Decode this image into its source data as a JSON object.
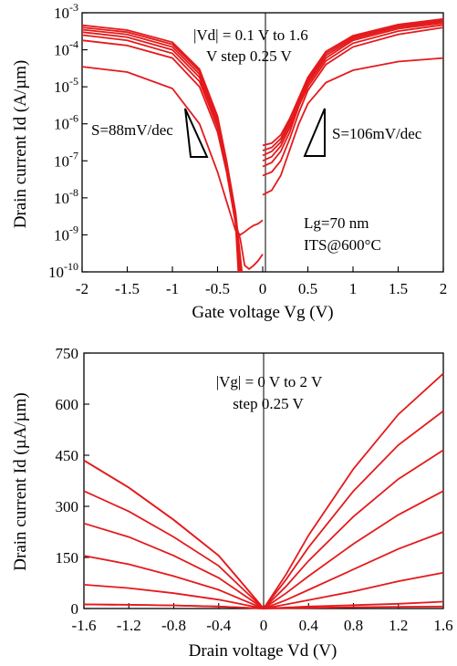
{
  "colors": {
    "curve": "#e41a1c",
    "axis": "#000000"
  },
  "chart_data": [
    {
      "type": "line",
      "xlabel": "Gate voltage Vg (V)",
      "ylabel": "Drain current Id (A/µm)",
      "x_ticks": [
        "-2",
        "-1.5",
        "-1",
        "-0.5",
        "0",
        "0.5",
        "1",
        "1.5",
        "2"
      ],
      "y_ticks": [
        "10-10",
        "10-9",
        "10-8",
        "10-7",
        "10-6",
        "10-5",
        "10-4",
        "10-3"
      ],
      "xlim": [
        -2,
        2
      ],
      "ylim": [
        1e-10,
        0.001
      ],
      "yscale": "log",
      "annotations": {
        "vd_range": "|Vd| = 0.1 V to 1.6",
        "vd_step": "V step 0.25 V",
        "s_left": "S=88mV/dec",
        "s_right": "S=106mV/dec",
        "lg": "Lg=70 nm",
        "its": "ITS@600°C"
      },
      "negative_branch": [
        {
          "x": [
            -2.0,
            -1.5,
            -1.0,
            -0.7,
            -0.5,
            -0.4,
            -0.3,
            -0.25,
            -0.2,
            -0.15,
            -0.1,
            -0.05,
            0.0
          ],
          "y": [
            3.5e-05,
            2.5e-05,
            9e-06,
            1e-06,
            5e-08,
            8e-09,
            1.3e-09,
            1e-09,
            1.2e-09,
            1.5e-09,
            1.8e-09,
            2e-09,
            2.5e-09
          ]
        },
        {
          "x": [
            -2.0,
            -1.5,
            -1.0,
            -0.7,
            -0.5,
            -0.4,
            -0.3,
            -0.25,
            -0.2,
            -0.15,
            -0.1,
            -0.05,
            0.0
          ],
          "y": [
            0.00018,
            0.00013,
            6e-05,
            1e-05,
            6e-07,
            5e-08,
            2e-09,
            8e-10,
            1.5e-10,
            1.2e-10,
            1.5e-10,
            2e-10,
            3e-10
          ]
        },
        {
          "x": [
            -2.0,
            -1.5,
            -1.0,
            -0.7,
            -0.5,
            -0.4,
            -0.3,
            -0.27
          ],
          "y": [
            0.00025,
            0.00018,
            8e-05,
            1.4e-05,
            8e-07,
            6e-08,
            2e-09,
            1e-10
          ]
        },
        {
          "x": [
            -2.0,
            -1.5,
            -1.0,
            -0.7,
            -0.5,
            -0.4,
            -0.3,
            -0.26
          ],
          "y": [
            0.0003,
            0.00022,
            0.0001,
            1.8e-05,
            1e-06,
            7e-08,
            2.5e-09,
            1e-10
          ]
        },
        {
          "x": [
            -2.0,
            -1.5,
            -1.0,
            -0.7,
            -0.5,
            -0.4,
            -0.3,
            -0.25
          ],
          "y": [
            0.00035,
            0.00026,
            0.00012,
            2.2e-05,
            1.2e-06,
            8e-08,
            3e-09,
            1e-10
          ]
        },
        {
          "x": [
            -2.0,
            -1.5,
            -1.0,
            -0.7,
            -0.5,
            -0.4,
            -0.3,
            -0.24
          ],
          "y": [
            0.0004,
            0.0003,
            0.00014,
            2.6e-05,
            1.4e-06,
            9e-08,
            3.5e-09,
            1e-10
          ]
        },
        {
          "x": [
            -2.0,
            -1.5,
            -1.0,
            -0.7,
            -0.5,
            -0.4,
            -0.3,
            -0.23
          ],
          "y": [
            0.00046,
            0.00034,
            0.00016,
            3e-05,
            1.6e-06,
            1e-07,
            4e-09,
            1e-10
          ]
        }
      ],
      "positive_branch": [
        {
          "x": [
            0.0,
            0.1,
            0.2,
            0.3,
            0.4,
            0.5,
            0.7,
            1.0,
            1.5,
            2.0
          ],
          "y": [
            1.2e-08,
            1.6e-08,
            4e-08,
            2e-07,
            1e-06,
            3.5e-06,
            1.3e-05,
            2.8e-05,
            4.8e-05,
            6e-05
          ]
        },
        {
          "x": [
            0.0,
            0.1,
            0.2,
            0.3,
            0.4,
            0.5,
            0.7,
            1.0,
            1.5,
            2.0
          ],
          "y": [
            4e-08,
            5e-08,
            1e-07,
            4e-07,
            2e-06,
            8e-06,
            4e-05,
            0.00012,
            0.00026,
            0.0004
          ]
        },
        {
          "x": [
            0.0,
            0.1,
            0.2,
            0.3,
            0.4,
            0.5,
            0.7,
            1.0,
            1.5,
            2.0
          ],
          "y": [
            7e-08,
            9e-08,
            1.8e-07,
            6e-07,
            3e-06,
            1e-05,
            5e-05,
            0.00015,
            0.00032,
            0.00047
          ]
        },
        {
          "x": [
            0.0,
            0.1,
            0.2,
            0.3,
            0.4,
            0.5,
            0.7,
            1.0,
            1.5,
            2.0
          ],
          "y": [
            1e-07,
            1.3e-07,
            2.5e-07,
            8e-07,
            3.5e-06,
            1.2e-05,
            6e-05,
            0.00018,
            0.00037,
            0.00053
          ]
        },
        {
          "x": [
            0.0,
            0.1,
            0.2,
            0.3,
            0.4,
            0.5,
            0.7,
            1.0,
            1.5,
            2.0
          ],
          "y": [
            1.4e-07,
            1.8e-07,
            3.2e-07,
            1e-06,
            4e-06,
            1.4e-05,
            7e-05,
            0.0002,
            0.00041,
            0.00058
          ]
        },
        {
          "x": [
            0.0,
            0.1,
            0.2,
            0.3,
            0.4,
            0.5,
            0.7,
            1.0,
            1.5,
            2.0
          ],
          "y": [
            1.9e-07,
            2.3e-07,
            4e-07,
            1.2e-06,
            4.5e-06,
            1.6e-05,
            8e-05,
            0.00022,
            0.00044,
            0.00063
          ]
        },
        {
          "x": [
            0.0,
            0.1,
            0.2,
            0.3,
            0.4,
            0.5,
            0.7,
            1.0,
            1.5,
            2.0
          ],
          "y": [
            2.6e-07,
            3e-07,
            5e-07,
            1.4e-06,
            5e-06,
            1.8e-05,
            9e-05,
            0.00024,
            0.00048,
            0.00068
          ]
        }
      ]
    },
    {
      "type": "line",
      "xlabel": "Drain voltage Vd (V)",
      "ylabel": "Drain current Id (µA/µm)",
      "x_ticks": [
        "-1.6",
        "-1.2",
        "-0.8",
        "-0.4",
        "0",
        "0.4",
        "0.8",
        "1.2",
        "1.6"
      ],
      "y_ticks": [
        "0",
        "150",
        "300",
        "450",
        "600",
        "750"
      ],
      "xlim": [
        -1.6,
        1.6
      ],
      "ylim": [
        0,
        750
      ],
      "annotations": {
        "vg_range": "|Vg| = 0 V to 2 V",
        "vg_step": "step  0.25 V"
      },
      "x": [
        -1.6,
        -1.2,
        -0.8,
        -0.4,
        -0.2,
        0,
        0.2,
        0.4,
        0.8,
        1.2,
        1.6
      ],
      "series": [
        {
          "values": [
            12,
            11,
            9,
            6,
            3,
            0,
            1,
            2,
            4,
            5,
            6
          ]
        },
        {
          "values": [
            12,
            11,
            9,
            6,
            3,
            0,
            3,
            6,
            10,
            14,
            20
          ]
        },
        {
          "values": [
            70,
            60,
            45,
            26,
            13,
            0,
            12,
            25,
            50,
            80,
            105
          ]
        },
        {
          "values": [
            155,
            130,
            95,
            55,
            27,
            0,
            25,
            55,
            115,
            175,
            225
          ]
        },
        {
          "values": [
            250,
            210,
            155,
            90,
            45,
            0,
            45,
            95,
            190,
            275,
            345
          ]
        },
        {
          "values": [
            345,
            285,
            210,
            125,
            62,
            0,
            65,
            140,
            270,
            380,
            465
          ]
        },
        {
          "values": [
            435,
            355,
            260,
            155,
            78,
            0,
            85,
            180,
            345,
            480,
            580
          ]
        },
        {
          "values": [
            435,
            355,
            260,
            155,
            78,
            0,
            100,
            215,
            410,
            570,
            690
          ]
        }
      ]
    }
  ]
}
